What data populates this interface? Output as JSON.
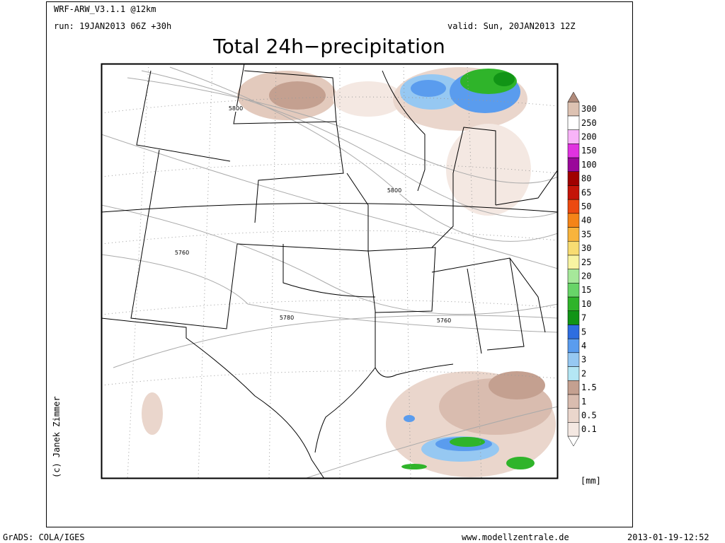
{
  "header": {
    "model": "WRF-ARW_V3.1.1 @12km",
    "run": "run: 19JAN2013 06Z +30h",
    "valid": "valid: Sun, 20JAN2013 12Z",
    "title": "Total 24h−precipitation"
  },
  "map": {
    "contour_labels": [
      "5800",
      "5800",
      "5760",
      "5780",
      "5760"
    ]
  },
  "colorbar": {
    "labels": [
      0.1,
      0.5,
      1,
      1.5,
      2,
      3,
      4,
      5,
      7,
      10,
      15,
      20,
      25,
      30,
      35,
      40,
      50,
      65,
      80,
      100,
      150,
      200,
      250,
      300
    ],
    "colors": [
      "#f4e8e2",
      "#ead6cc",
      "#d9bcaf",
      "#c4a090",
      "#b4e6f4",
      "#96c8f2",
      "#5a9cee",
      "#2e6ee0",
      "#119416",
      "#2fb42a",
      "#68d468",
      "#a6e89a",
      "#f8f4a2",
      "#f8dc72",
      "#f8b43c",
      "#f48418",
      "#ec4a10",
      "#c41408",
      "#a00000",
      "#9a089a",
      "#e032e0",
      "#f8b4f8",
      "#ffffff",
      "#ddc2b2"
    ],
    "above_color": "#b08a7a",
    "below_color": "#ffffff",
    "unit": "[mm]"
  },
  "credit": "(c) Janek Zimmer",
  "footer": {
    "left": "GrADS: COLA/IGES",
    "center": "www.modellzentrale.de",
    "right": "2013-01-19-12:52"
  }
}
